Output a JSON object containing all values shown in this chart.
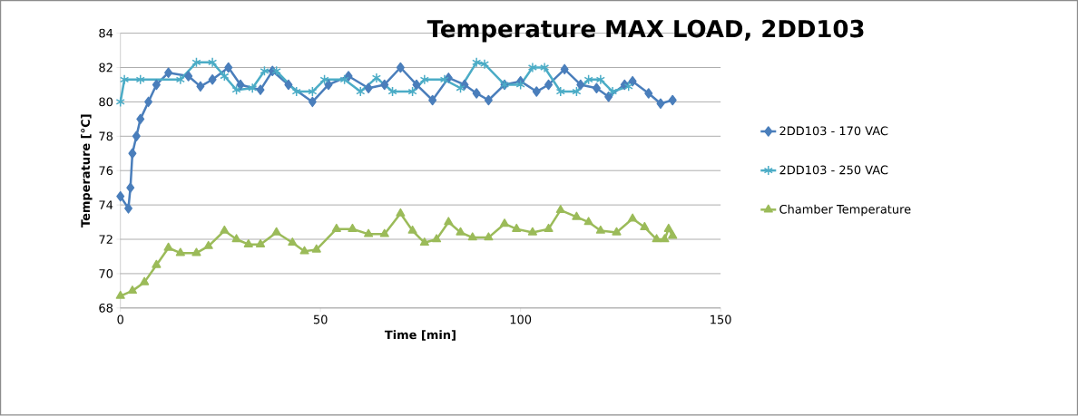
{
  "chart_data": {
    "type": "line",
    "title": "Temperature MAX LOAD, 2DD103",
    "xlabel": "Time [min]",
    "ylabel": "Temperature [°C]",
    "xlim": [
      0,
      150
    ],
    "xticks": [
      0,
      50,
      100,
      150
    ],
    "ylim": [
      68,
      84
    ],
    "yticks": [
      68,
      70,
      72,
      74,
      76,
      78,
      80,
      82,
      84
    ],
    "grid": "y",
    "legend": "right",
    "line_style": "solid",
    "series": [
      {
        "name": "2DD103 - 170 VAC",
        "color": "#4a7ebb",
        "marker": "diamond",
        "x": [
          0,
          2,
          2.5,
          3,
          4,
          5,
          7,
          9,
          12,
          17,
          20,
          23,
          27,
          30,
          35,
          38,
          42,
          48,
          52,
          57,
          62,
          66,
          70,
          74,
          78,
          82,
          86,
          89,
          92,
          96,
          100,
          104,
          107,
          111,
          115,
          119,
          122,
          126,
          128,
          132,
          135,
          138
        ],
        "values": [
          74.5,
          73.8,
          75,
          77,
          78,
          79,
          80,
          81,
          81.7,
          81.5,
          80.9,
          81.3,
          82,
          81,
          80.7,
          81.8,
          81,
          80,
          81,
          81.5,
          80.8,
          81,
          82,
          81,
          80.1,
          81.4,
          81,
          80.5,
          80.1,
          81,
          81.2,
          80.6,
          81,
          81.9,
          81,
          80.8,
          80.3,
          81,
          81.2,
          80.5,
          79.9,
          80.1
        ]
      },
      {
        "name": "2DD103 - 250 VAC",
        "color": "#4bacc6",
        "marker": "cross",
        "x": [
          0,
          1,
          5,
          15,
          19,
          23,
          26,
          29,
          33,
          36,
          39,
          44,
          48,
          51,
          56,
          60,
          64,
          68,
          73,
          76,
          81,
          85,
          89,
          91,
          96,
          100,
          103,
          106,
          110,
          114,
          117,
          120,
          123,
          127
        ],
        "values": [
          80,
          81.3,
          81.3,
          81.3,
          82.3,
          82.3,
          81.5,
          80.7,
          80.8,
          81.8,
          81.8,
          80.6,
          80.6,
          81.3,
          81.3,
          80.6,
          81.4,
          80.6,
          80.6,
          81.3,
          81.3,
          80.8,
          82.3,
          82.2,
          81,
          81,
          82,
          82,
          80.6,
          80.6,
          81.3,
          81.3,
          80.6,
          80.9
        ]
      },
      {
        "name": "Chamber Temperature",
        "color": "#9bbb59",
        "marker": "triangle",
        "x": [
          0,
          3,
          6,
          9,
          12,
          15,
          19,
          22,
          26,
          29,
          32,
          35,
          39,
          43,
          46,
          49,
          54,
          58,
          62,
          66,
          70,
          73,
          76,
          79,
          82,
          85,
          88,
          92,
          96,
          99,
          103,
          107,
          110,
          114,
          117,
          120,
          124,
          128,
          131,
          134,
          136,
          137,
          138
        ],
        "values": [
          68.7,
          69,
          69.5,
          70.5,
          71.5,
          71.2,
          71.2,
          71.6,
          72.5,
          72,
          71.7,
          71.7,
          72.4,
          71.8,
          71.3,
          71.4,
          72.6,
          72.6,
          72.3,
          72.3,
          73.5,
          72.5,
          71.8,
          72,
          73,
          72.4,
          72.1,
          72.1,
          72.9,
          72.6,
          72.4,
          72.6,
          73.7,
          73.3,
          73,
          72.5,
          72.4,
          73.2,
          72.7,
          72,
          72,
          72.6,
          72.2
        ]
      }
    ]
  }
}
